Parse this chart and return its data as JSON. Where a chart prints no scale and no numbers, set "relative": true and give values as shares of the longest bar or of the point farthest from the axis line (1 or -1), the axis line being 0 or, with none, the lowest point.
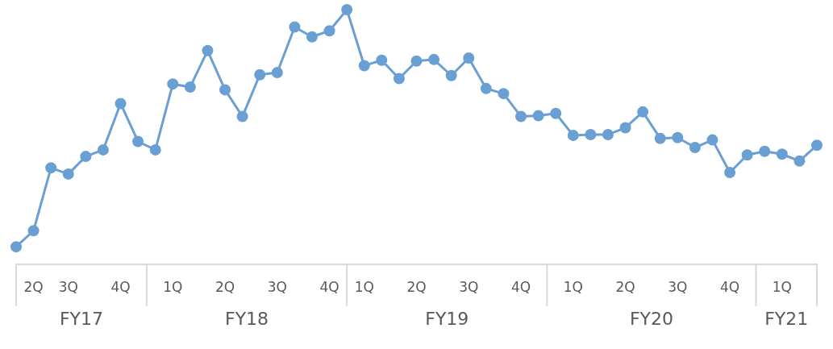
{
  "chart_data": {
    "type": "line",
    "relative": true,
    "marker": "circle",
    "line_style": "solid",
    "grid": false,
    "legend": false,
    "categories": [
      null,
      "2Q",
      null,
      "3Q",
      null,
      null,
      "4Q",
      null,
      null,
      "1Q",
      null,
      null,
      "2Q",
      null,
      null,
      "3Q",
      null,
      null,
      "4Q",
      null,
      "1Q",
      null,
      null,
      "2Q",
      null,
      null,
      "3Q",
      null,
      null,
      "4Q",
      null,
      null,
      "1Q",
      null,
      null,
      "2Q",
      null,
      null,
      "3Q",
      null,
      null,
      "4Q",
      null,
      null,
      "1Q",
      null,
      null
    ],
    "series": [
      {
        "color": "#6a9fd4",
        "values": [
          0.068,
          0.131,
          0.378,
          0.354,
          0.423,
          0.449,
          0.631,
          0.482,
          0.449,
          0.708,
          0.696,
          0.839,
          0.685,
          0.58,
          0.744,
          0.753,
          0.932,
          0.893,
          0.917,
          1.0,
          0.78,
          0.801,
          0.729,
          0.798,
          0.804,
          0.741,
          0.81,
          0.69,
          0.67,
          0.58,
          0.583,
          0.592,
          0.506,
          0.509,
          0.509,
          0.536,
          0.598,
          0.494,
          0.497,
          0.458,
          0.488,
          0.36,
          0.429,
          0.443,
          0.432,
          0.405,
          0.467
        ]
      }
    ],
    "annotations": [
      "FY17",
      "FY18",
      "FY19",
      "FY20",
      "FY21"
    ]
  }
}
